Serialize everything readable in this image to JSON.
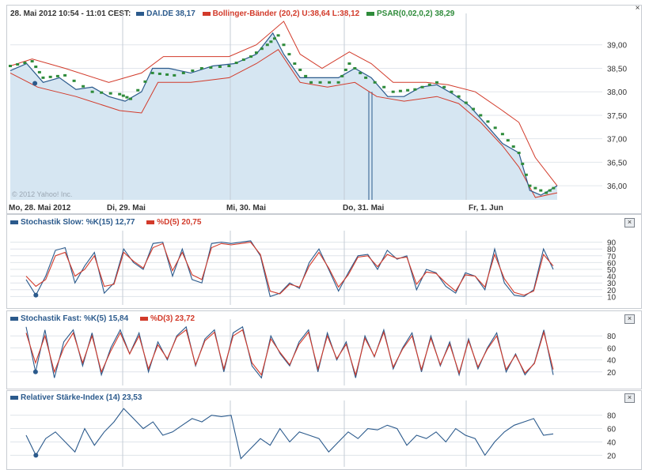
{
  "main": {
    "legend_time": "28. Mai 2012 10:54 - 11:01 CEST:",
    "legend_dai": "DAI.DE 38,17",
    "legend_boll": "Bollinger-Bänder (20,2) U:38,64 L:38,12",
    "legend_psar": "PSAR(0,02,0,2) 38,29",
    "watermark": "© 2012 Yahoo! Inc.",
    "colors": {
      "price": "#2b5a8c",
      "fill": "#d6e6f2",
      "bollinger": "#d23a2a",
      "psar": "#2e8b3a"
    }
  },
  "stoch_slow": {
    "legend_k": "Stochastik Slow: %K(15) 12,77",
    "legend_d": "%D(5) 20,75",
    "close": "×"
  },
  "stoch_fast": {
    "legend_k": "Stochastik Fast: %K(5) 15,84",
    "legend_d": "%D(3) 23,72",
    "close": "×"
  },
  "rsi": {
    "legend": "Relativer Stärke-Index (14) 23,53",
    "close": "×"
  },
  "chart_data": [
    {
      "type": "line",
      "title": "DAI.DE",
      "x_axis_labels": [
        "Mo, 28. Mai 2012",
        "Di, 29. Mai",
        "Mi, 30. Mai",
        "Do, 31. Mai",
        "Fr, 1. Jun"
      ],
      "y_ticks": [
        "36,00",
        "36,50",
        "37,00",
        "37,50",
        "38,00",
        "38,50",
        "39,00"
      ],
      "ylim": [
        35.7,
        39.5
      ],
      "series": [
        {
          "name": "DAI.DE",
          "points": [
            [
              0,
              38.45
            ],
            [
              0.03,
              38.6
            ],
            [
              0.06,
              38.2
            ],
            [
              0.09,
              38.3
            ],
            [
              0.12,
              38.05
            ],
            [
              0.15,
              38.1
            ],
            [
              0.18,
              37.9
            ],
            [
              0.21,
              37.8
            ],
            [
              0.24,
              38.0
            ],
            [
              0.26,
              38.5
            ],
            [
              0.29,
              38.5
            ],
            [
              0.33,
              38.4
            ],
            [
              0.37,
              38.55
            ],
            [
              0.41,
              38.6
            ],
            [
              0.45,
              38.8
            ],
            [
              0.48,
              39.25
            ],
            [
              0.5,
              38.8
            ],
            [
              0.53,
              38.3
            ],
            [
              0.56,
              38.3
            ],
            [
              0.6,
              38.3
            ],
            [
              0.63,
              38.5
            ],
            [
              0.66,
              38.3
            ],
            [
              0.69,
              37.9
            ],
            [
              0.72,
              37.9
            ],
            [
              0.75,
              38.1
            ],
            [
              0.78,
              38.15
            ],
            [
              0.81,
              37.95
            ],
            [
              0.84,
              37.7
            ],
            [
              0.87,
              37.3
            ],
            [
              0.9,
              36.9
            ],
            [
              0.93,
              36.7
            ],
            [
              0.95,
              35.9
            ],
            [
              0.97,
              35.8
            ],
            [
              1.0,
              36.0
            ]
          ]
        },
        {
          "name": "Bollinger upper",
          "points": [
            [
              0,
              38.55
            ],
            [
              0.04,
              38.7
            ],
            [
              0.1,
              38.5
            ],
            [
              0.18,
              38.2
            ],
            [
              0.24,
              38.4
            ],
            [
              0.28,
              38.75
            ],
            [
              0.34,
              38.75
            ],
            [
              0.4,
              38.75
            ],
            [
              0.45,
              39.0
            ],
            [
              0.5,
              39.5
            ],
            [
              0.53,
              38.8
            ],
            [
              0.57,
              38.5
            ],
            [
              0.62,
              38.85
            ],
            [
              0.66,
              38.6
            ],
            [
              0.7,
              38.2
            ],
            [
              0.76,
              38.2
            ],
            [
              0.8,
              38.15
            ],
            [
              0.85,
              38.0
            ],
            [
              0.9,
              37.6
            ],
            [
              0.93,
              37.35
            ],
            [
              0.96,
              36.6
            ],
            [
              1.0,
              36.0
            ]
          ]
        },
        {
          "name": "Bollinger lower",
          "points": [
            [
              0,
              38.4
            ],
            [
              0.05,
              38.1
            ],
            [
              0.12,
              37.9
            ],
            [
              0.2,
              37.6
            ],
            [
              0.24,
              37.55
            ],
            [
              0.27,
              38.2
            ],
            [
              0.33,
              38.2
            ],
            [
              0.4,
              38.3
            ],
            [
              0.45,
              38.6
            ],
            [
              0.49,
              38.9
            ],
            [
              0.53,
              38.2
            ],
            [
              0.58,
              38.1
            ],
            [
              0.63,
              38.2
            ],
            [
              0.67,
              37.9
            ],
            [
              0.72,
              37.8
            ],
            [
              0.78,
              37.9
            ],
            [
              0.82,
              37.75
            ],
            [
              0.86,
              37.35
            ],
            [
              0.9,
              36.85
            ],
            [
              0.93,
              36.4
            ],
            [
              0.96,
              35.75
            ],
            [
              1.0,
              35.85
            ]
          ]
        },
        {
          "name": "PSAR",
          "points": [
            [
              0,
              38.55
            ],
            [
              0.04,
              38.65
            ],
            [
              0.06,
              38.3
            ],
            [
              0.1,
              38.35
            ],
            [
              0.15,
              38.0
            ],
            [
              0.2,
              37.95
            ],
            [
              0.22,
              37.85
            ],
            [
              0.26,
              38.4
            ],
            [
              0.3,
              38.35
            ],
            [
              0.35,
              38.5
            ],
            [
              0.4,
              38.55
            ],
            [
              0.44,
              38.75
            ],
            [
              0.47,
              39.0
            ],
            [
              0.49,
              39.2
            ],
            [
              0.52,
              38.6
            ],
            [
              0.55,
              38.2
            ],
            [
              0.6,
              38.2
            ],
            [
              0.62,
              38.6
            ],
            [
              0.65,
              38.3
            ],
            [
              0.7,
              38.0
            ],
            [
              0.74,
              38.05
            ],
            [
              0.78,
              38.2
            ],
            [
              0.82,
              37.9
            ],
            [
              0.86,
              37.5
            ],
            [
              0.9,
              37.1
            ],
            [
              0.93,
              36.7
            ],
            [
              0.95,
              36.0
            ],
            [
              0.98,
              35.85
            ],
            [
              1.0,
              36.0
            ]
          ]
        }
      ]
    },
    {
      "type": "line",
      "title": "Stochastik Slow",
      "y_ticks": [
        "10",
        "20",
        "30",
        "40",
        "50",
        "60",
        "70",
        "80",
        "90"
      ],
      "ylim": [
        0,
        100
      ],
      "series": [
        {
          "name": "%K(15)",
          "values": [
            35,
            12,
            40,
            78,
            82,
            30,
            55,
            75,
            15,
            30,
            80,
            60,
            50,
            88,
            90,
            40,
            80,
            35,
            30,
            88,
            90,
            88,
            90,
            92,
            70,
            10,
            15,
            30,
            22,
            60,
            80,
            50,
            18,
            45,
            70,
            72,
            50,
            78,
            65,
            70,
            20,
            50,
            45,
            25,
            15,
            45,
            40,
            20,
            80,
            30,
            12,
            10,
            20,
            80,
            50
          ]
        },
        {
          "name": "%D(5)",
          "values": [
            40,
            25,
            35,
            70,
            75,
            40,
            50,
            70,
            25,
            28,
            75,
            62,
            52,
            82,
            88,
            48,
            75,
            42,
            35,
            82,
            88,
            86,
            88,
            90,
            72,
            18,
            14,
            28,
            24,
            55,
            75,
            52,
            24,
            42,
            68,
            70,
            54,
            72,
            66,
            68,
            28,
            46,
            44,
            30,
            18,
            42,
            40,
            24,
            72,
            36,
            16,
            12,
            18,
            72,
            55
          ]
        }
      ]
    },
    {
      "type": "line",
      "title": "Stochastik Fast",
      "y_ticks": [
        "20",
        "40",
        "60",
        "80"
      ],
      "ylim": [
        0,
        100
      ],
      "series": [
        {
          "name": "%K(5)",
          "values": [
            95,
            20,
            90,
            10,
            70,
            90,
            30,
            85,
            15,
            60,
            90,
            50,
            85,
            20,
            70,
            40,
            80,
            95,
            30,
            75,
            90,
            20,
            85,
            95,
            30,
            10,
            80,
            50,
            30,
            70,
            90,
            20,
            85,
            40,
            70,
            10,
            80,
            45,
            90,
            25,
            60,
            85,
            20,
            80,
            30,
            70,
            15,
            75,
            25,
            60,
            85,
            20,
            50,
            15,
            35,
            90,
            15
          ]
        },
        {
          "name": "%D(3)",
          "values": [
            85,
            35,
            80,
            20,
            60,
            85,
            35,
            80,
            20,
            55,
            85,
            50,
            80,
            25,
            65,
            42,
            78,
            90,
            32,
            72,
            86,
            25,
            80,
            90,
            35,
            15,
            75,
            52,
            32,
            66,
            86,
            25,
            80,
            42,
            66,
            15,
            76,
            46,
            86,
            28,
            58,
            80,
            24,
            76,
            32,
            66,
            18,
            72,
            28,
            58,
            80,
            24,
            48,
            18,
            34,
            86,
            24
          ]
        }
      ]
    },
    {
      "type": "line",
      "title": "Relativer Stärke-Index",
      "y_ticks": [
        "20",
        "40",
        "60",
        "80"
      ],
      "ylim": [
        5,
        95
      ],
      "series": [
        {
          "name": "RSI(14)",
          "values": [
            50,
            20,
            45,
            55,
            40,
            25,
            60,
            35,
            55,
            70,
            90,
            75,
            60,
            70,
            50,
            55,
            65,
            75,
            70,
            80,
            78,
            80,
            15,
            30,
            45,
            35,
            60,
            40,
            55,
            50,
            45,
            25,
            40,
            55,
            45,
            60,
            58,
            65,
            60,
            35,
            50,
            45,
            55,
            40,
            60,
            50,
            45,
            20,
            40,
            55,
            65,
            70,
            75,
            50,
            52
          ]
        }
      ]
    }
  ]
}
